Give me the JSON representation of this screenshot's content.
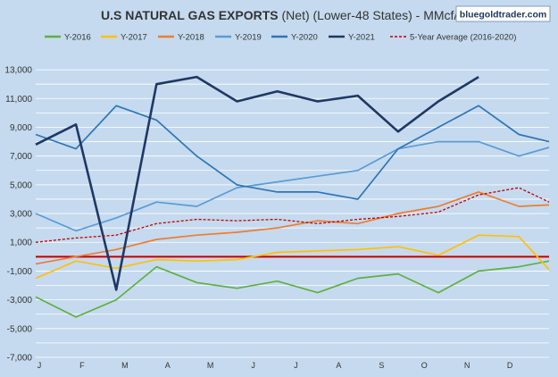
{
  "header": {
    "title_bold": "U.S NATURAL GAS EXPORTS",
    "title_rest": " (Net) (Lower-48 States) - MMcf/d",
    "watermark": "bluegoldtrader.com"
  },
  "colors": {
    "background": "#c5daef",
    "grid": "#ffffff",
    "zero_line": "#c00000",
    "y2016": "#5fb040",
    "y2017": "#ffc000",
    "y2018": "#ed7d31",
    "y2019": "#5b9bd5",
    "y2020": "#2e75b6",
    "y2021": "#1f3864",
    "avg": "#c00000"
  },
  "chart_data": {
    "type": "line",
    "title": "U.S NATURAL GAS EXPORTS (Net) (Lower-48 States) - MMcf/d",
    "xlabel": "",
    "ylabel": "",
    "x_ticks": [
      "J",
      "F",
      "M",
      "A",
      "M",
      "J",
      "J",
      "A",
      "S",
      "O",
      "N",
      "D"
    ],
    "y_ticks": [
      "13,000",
      "11,000",
      "9,000",
      "7,000",
      "5,000",
      "3,000",
      "1,000",
      "-1,000",
      "-3,000",
      "-5,000",
      "-7,000"
    ],
    "ylim": [
      -7000,
      14000
    ],
    "xlim": [
      1,
      52
    ],
    "x": [
      1,
      5,
      9,
      13,
      17,
      21,
      25,
      29,
      33,
      37,
      41,
      45,
      49,
      52
    ],
    "grid": true,
    "legend": "top",
    "series": [
      {
        "name": "Y-2016",
        "style": "solid",
        "color_key": "y2016",
        "values": [
          -2800,
          -4200,
          -3000,
          -700,
          -1800,
          -2200,
          -1700,
          -2500,
          -1500,
          -1200,
          -2500,
          -1000,
          -700,
          -300
        ]
      },
      {
        "name": "Y-2017",
        "style": "solid",
        "color_key": "y2017",
        "values": [
          -1500,
          -300,
          -800,
          -200,
          -300,
          -200,
          300,
          400,
          500,
          700,
          100,
          1500,
          1400,
          -900
        ]
      },
      {
        "name": "Y-2018",
        "style": "solid",
        "color_key": "y2018",
        "values": [
          -500,
          0,
          500,
          1200,
          1500,
          1700,
          2000,
          2500,
          2300,
          3000,
          3500,
          4500,
          3500,
          3600
        ]
      },
      {
        "name": "Y-2019",
        "style": "solid",
        "color_key": "y2019",
        "values": [
          3000,
          1800,
          2700,
          3800,
          3500,
          4800,
          5200,
          5600,
          6000,
          7500,
          8000,
          8000,
          7000,
          7600
        ]
      },
      {
        "name": "Y-2020",
        "style": "solid",
        "color_key": "y2020",
        "values": [
          8500,
          7500,
          10500,
          9500,
          7000,
          5000,
          4500,
          4500,
          4000,
          7500,
          9000,
          10500,
          8500,
          8000
        ]
      },
      {
        "name": "Y-2021",
        "style": "solid",
        "color_key": "y2021",
        "values": [
          7800,
          9200,
          -2300,
          12000,
          12500,
          10800,
          11500,
          10800,
          11200,
          8700,
          10800,
          12500,
          null,
          null
        ]
      },
      {
        "name": "5-Year Average (2016-2020)",
        "style": "dashed",
        "color_key": "avg",
        "values": [
          1000,
          1300,
          1500,
          2300,
          2600,
          2500,
          2600,
          2300,
          2600,
          2800,
          3100,
          4300,
          4800,
          3800
        ]
      }
    ]
  }
}
